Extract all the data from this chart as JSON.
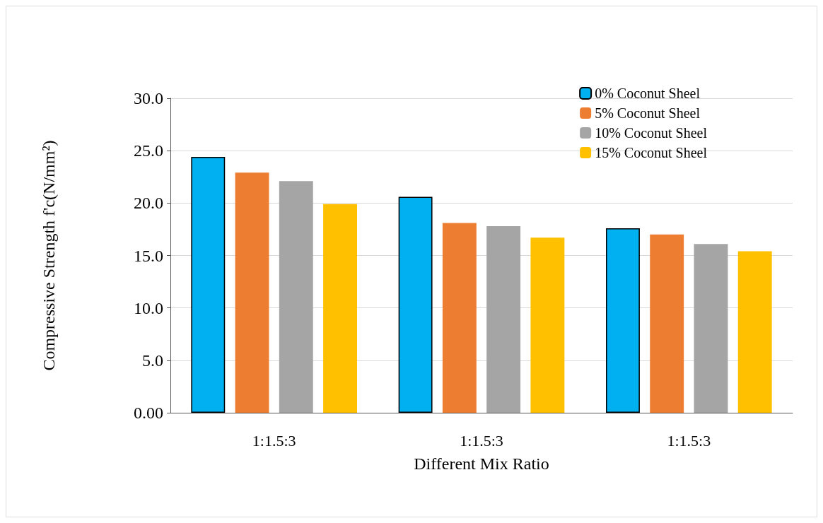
{
  "chart_data": {
    "type": "bar",
    "xlabel": "Different Mix Ratio",
    "ylabel": "Compressive Strength f'c(N/mm²)",
    "categories": [
      "1:1.5:3",
      "1:1.5:3",
      "1:1.5:3"
    ],
    "series": [
      {
        "name": "0% Coconut Sheel",
        "color": "#00b0f0",
        "values": [
          24.4,
          20.6,
          17.6
        ]
      },
      {
        "name": "5% Coconut Sheel",
        "color": "#ed7d31",
        "values": [
          22.9,
          18.1,
          17.0
        ]
      },
      {
        "name": "10% Coconut Sheel",
        "color": "#a5a5a5",
        "values": [
          22.1,
          17.8,
          16.1
        ]
      },
      {
        "name": "15% Coconut Sheel",
        "color": "#ffc000",
        "values": [
          19.9,
          16.7,
          15.4
        ]
      }
    ],
    "ylim": [
      0,
      30
    ],
    "yticks": [
      {
        "value": 0,
        "label": "0.00"
      },
      {
        "value": 5,
        "label": "5.0"
      },
      {
        "value": 10,
        "label": "10.0"
      },
      {
        "value": 15,
        "label": "15.0"
      },
      {
        "value": 20,
        "label": "20.0"
      },
      {
        "value": 25,
        "label": "25.0"
      },
      {
        "value": 30,
        "label": "30.0"
      }
    ],
    "grid": "y",
    "legend": "top right"
  }
}
